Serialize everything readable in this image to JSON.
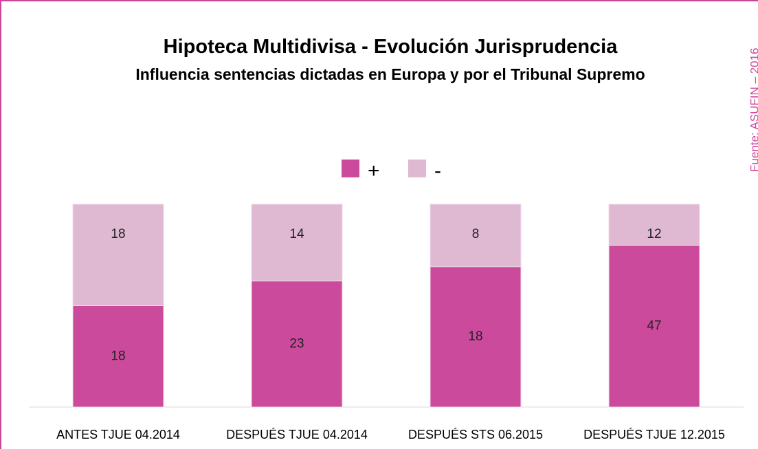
{
  "chart_data": {
    "type": "bar",
    "stacking": "percent",
    "title": "Hipoteca Multidivisa - Evolución Jurisprudencia",
    "subtitle": "Influencia sentencias dictadas en Europa y por el Tribunal Supremo",
    "source": "Fuente: ASUFIN – 2016",
    "categories": [
      "ANTES TJUE  04.2014",
      "DESPUÉS TJUE 04.2014",
      "DESPUÉS STS 06.2015",
      "DESPUÉS TJUE 12.2015"
    ],
    "series": [
      {
        "name": "+",
        "color": "#cc4a9c",
        "values": [
          18,
          23,
          18,
          47
        ]
      },
      {
        "name": "-",
        "color": "#dfb8d2",
        "values": [
          18,
          14,
          8,
          12
        ]
      }
    ],
    "legend": "top"
  }
}
